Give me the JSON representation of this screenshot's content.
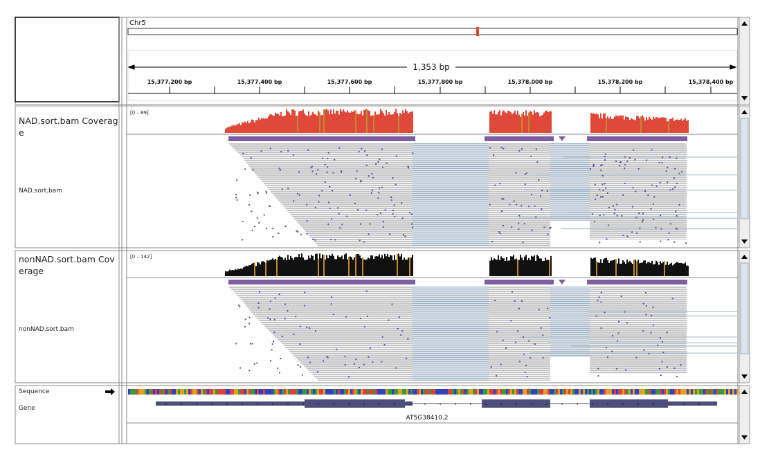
{
  "ruler": {
    "chromosome": "Chr5",
    "span": "1,353 bp",
    "ticks": [
      "15,377,200 bp",
      "15,377,400 bp",
      "15,377,600 bp",
      "15,377,800 bp",
      "15,378,000 bp",
      "15,378,200 bp",
      "15,378,400 bp"
    ]
  },
  "tracks": [
    {
      "name": "NAD.sort.bam Coverage",
      "range": "[0 – 89]"
    },
    {
      "name": "NAD.sort.bam"
    },
    {
      "name": "nonNAD.sort.bam Coverage",
      "range": "[0 – 142]"
    },
    {
      "name": "nonNAD.sort.bam"
    },
    {
      "name": "Sequence"
    },
    {
      "name": "Gene"
    }
  ],
  "gene": {
    "label": "AT5G38410.2"
  }
}
